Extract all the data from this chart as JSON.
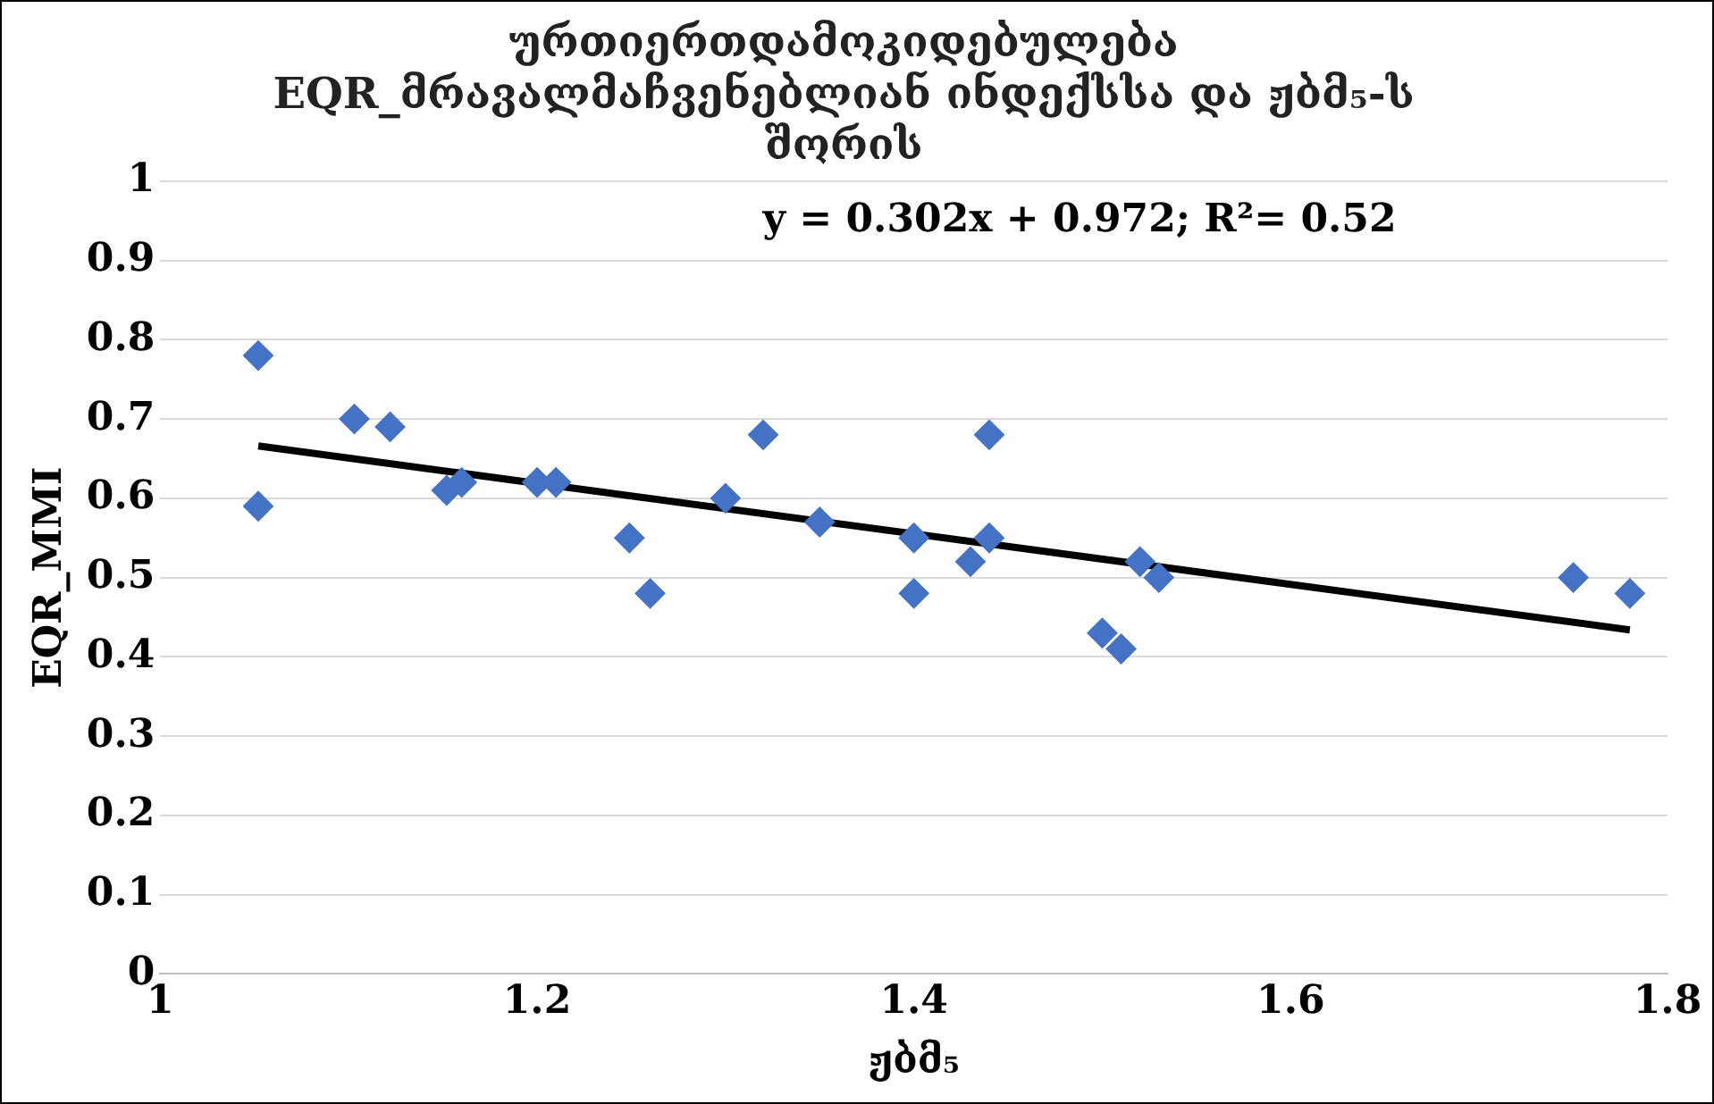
{
  "chart_data": {
    "type": "scatter",
    "title": "ურთიერთდამოკიდებულება\nEQR_მრავალმაჩვენებლიან ინდექსსა და ჟბმ₅-ს\nშორის",
    "xlabel": "ჟბმ₅",
    "ylabel": "EQR_MMI",
    "annotations": [
      "y = 0.302x + 0.972; R²= 0.52"
    ],
    "xlim": [
      1,
      1.8
    ],
    "xticks": [
      1,
      1.2,
      1.4,
      1.6,
      1.8
    ],
    "ylim": [
      0,
      1
    ],
    "yticks": [
      0,
      0.1,
      0.2,
      0.3,
      0.4,
      0.5,
      0.6,
      0.7,
      0.8,
      0.9,
      1
    ],
    "grid": "y",
    "legend": false,
    "marker": "diamond",
    "series": [
      {
        "color": "#4472c4",
        "x": [
          1.052,
          1.052,
          1.103,
          1.122,
          1.152,
          1.16,
          1.2,
          1.21,
          1.249,
          1.26,
          1.3,
          1.32,
          1.35,
          1.4,
          1.4,
          1.43,
          1.44,
          1.44,
          1.5,
          1.51,
          1.52,
          1.53,
          1.75,
          1.78
        ],
        "values": [
          0.78,
          0.59,
          0.7,
          0.69,
          0.61,
          0.62,
          0.62,
          0.62,
          0.55,
          0.48,
          0.6,
          0.68,
          0.57,
          0.55,
          0.48,
          0.52,
          0.68,
          0.55,
          0.43,
          0.41,
          0.52,
          0.5,
          0.5,
          0.48
        ]
      },
      {
        "type": "line",
        "marker": "none",
        "color": "#000000",
        "x": [
          1.052,
          1.78
        ],
        "values": [
          0.666,
          0.434
        ]
      }
    ]
  }
}
